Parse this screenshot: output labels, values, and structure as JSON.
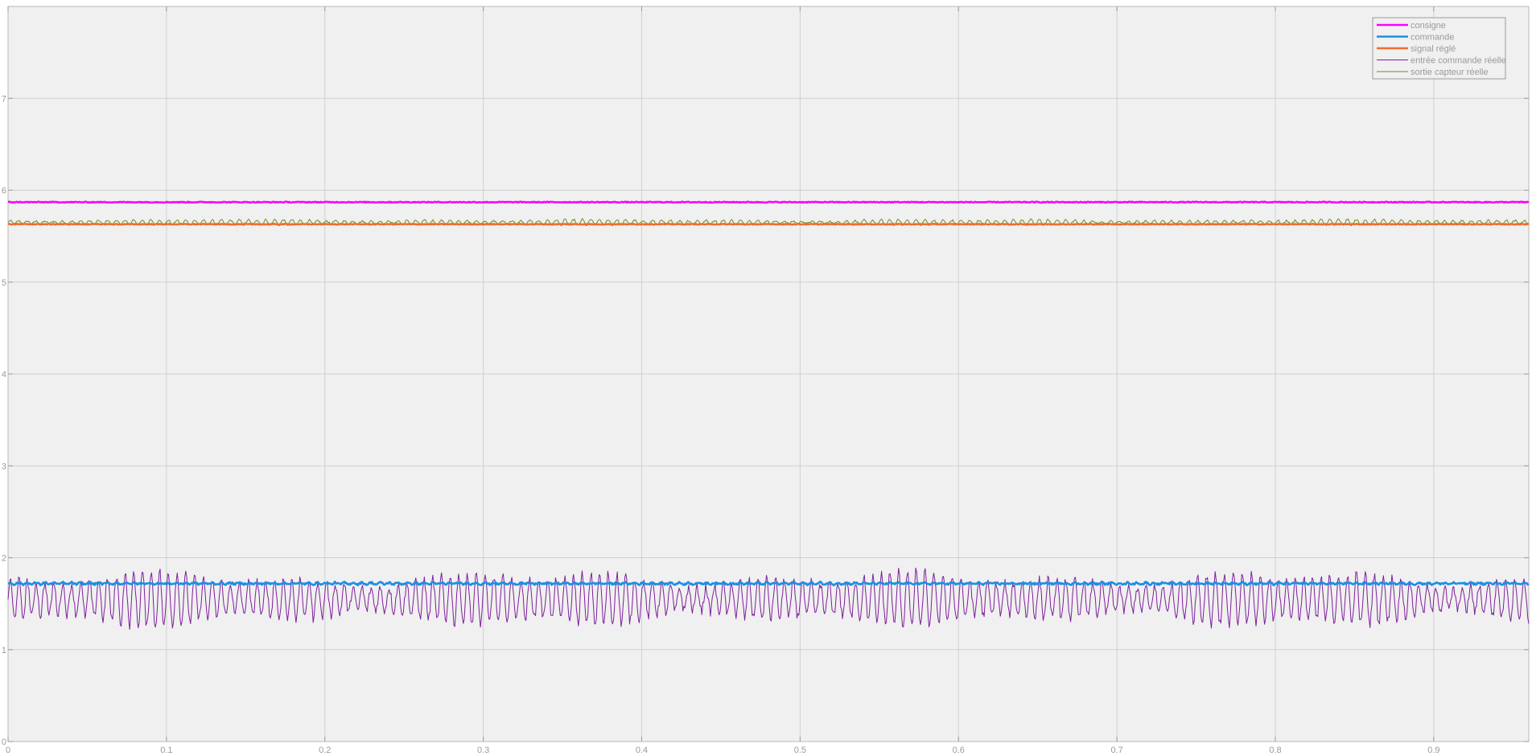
{
  "chart_data": {
    "type": "line",
    "title": "",
    "xlabel": "",
    "ylabel": "",
    "xlim": [
      0,
      0.96
    ],
    "ylim": [
      0,
      8
    ],
    "xticks": [
      0,
      0.1,
      0.2,
      0.3,
      0.4,
      0.5,
      0.6,
      0.7,
      0.8,
      0.9
    ],
    "xtick_labels": [
      "0",
      "0.1",
      "0.2",
      "0.3",
      "0.4",
      "0.5",
      "0.6",
      "0.7",
      "0.8",
      "0.9"
    ],
    "yticks": [
      0,
      1,
      2,
      3,
      4,
      5,
      6,
      7
    ],
    "ytick_labels": [
      "0",
      "1",
      "2",
      "3",
      "4",
      "5",
      "6",
      "7"
    ],
    "grid": true,
    "legend_position": "top-right",
    "series": [
      {
        "name": "consigne",
        "color": "#ff00ff",
        "width": "thick",
        "approx": {
          "mean": 5.87,
          "noise_amplitude": 0.005,
          "oscillation_amplitude": 0,
          "oscillation_frequency_hz": 0
        }
      },
      {
        "name": "commande",
        "color": "#1a8fe3",
        "width": "thick",
        "approx": {
          "mean": 1.72,
          "noise_amplitude": 0.01,
          "oscillation_amplitude": 0.01,
          "oscillation_frequency_hz": 180
        }
      },
      {
        "name": "signal réglé",
        "color": "#f26b2e",
        "width": "thick",
        "approx": {
          "mean": 5.63,
          "noise_amplitude": 0.004,
          "oscillation_amplitude": 0,
          "oscillation_frequency_hz": 0
        }
      },
      {
        "name": "entrée commande réelle",
        "color": "#7e1e9c",
        "width": "thin",
        "approx": {
          "mean": 1.55,
          "noise_amplitude": 0.05,
          "oscillation_amplitude": 0.28,
          "oscillation_frequency_hz": 180
        }
      },
      {
        "name": "sortie capteur réelle",
        "color": "#6b8e23",
        "width": "thin",
        "approx": {
          "mean": 5.65,
          "noise_amplitude": 0.01,
          "oscillation_amplitude": 0.03,
          "oscillation_frequency_hz": 180
        }
      }
    ]
  }
}
